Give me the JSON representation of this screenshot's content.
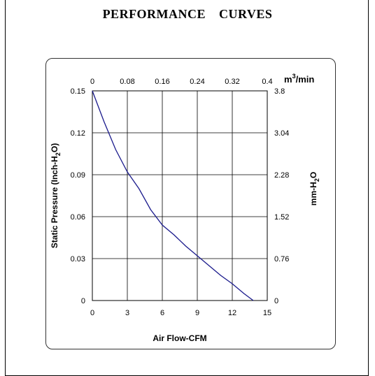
{
  "page": {
    "title": "PERFORMANCE    CURVES"
  },
  "chart_data": {
    "type": "line",
    "title": "PERFORMANCE    CURVES",
    "xlabel": "Air Flow-CFM",
    "ylabel": "Static Pressure (Inch-H",
    "ylabel_sub": "2",
    "ylabel_end": "O)",
    "x2label": "m",
    "x2label_sup": "3",
    "x2label_end": "/min",
    "y2label": "mm-H",
    "y2label_sub": "2",
    "y2label_end": "O",
    "xlim": [
      0,
      15
    ],
    "ylim": [
      0,
      0.15
    ],
    "x_ticks": [
      "0",
      "3",
      "6",
      "9",
      "12",
      "15"
    ],
    "y_ticks": [
      "0",
      "0.03",
      "0.06",
      "0.09",
      "0.12",
      "0.15"
    ],
    "x2_ticks": [
      "0",
      "0.08",
      "0.16",
      "0.24",
      "0.32",
      "0.4"
    ],
    "y2_ticks": [
      "0",
      "0.76",
      "1.52",
      "2.28",
      "3.04",
      "3.8"
    ],
    "grid": true,
    "series": [
      {
        "color": "#1a1a8c",
        "x": [
          0,
          1,
          2,
          3,
          4,
          5,
          6,
          7,
          8,
          9,
          10,
          11,
          12,
          13,
          13.8
        ],
        "y": [
          0.15,
          0.128,
          0.108,
          0.092,
          0.08,
          0.065,
          0.054,
          0.047,
          0.039,
          0.032,
          0.025,
          0.018,
          0.012,
          0.005,
          0
        ]
      }
    ]
  }
}
